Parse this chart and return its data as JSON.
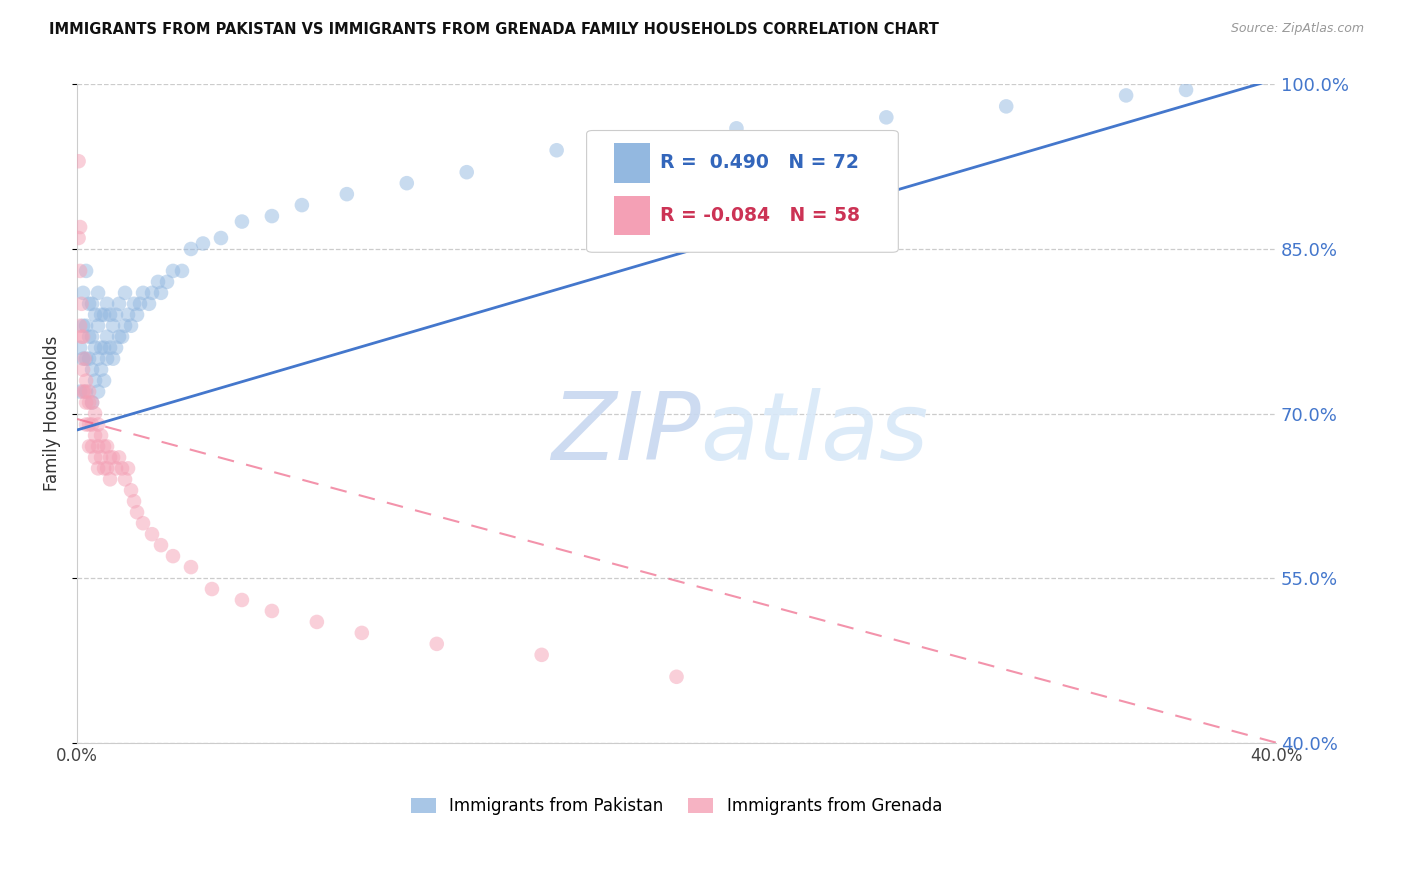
{
  "title": "IMMIGRANTS FROM PAKISTAN VS IMMIGRANTS FROM GRENADA FAMILY HOUSEHOLDS CORRELATION CHART",
  "source": "Source: ZipAtlas.com",
  "ylabel": "Family Households",
  "xlim": [
    0.0,
    0.4
  ],
  "ylim": [
    0.4,
    1.0
  ],
  "yticks": [
    0.4,
    0.55,
    0.7,
    0.85,
    1.0
  ],
  "ytick_labels": [
    "40.0%",
    "55.0%",
    "70.0%",
    "85.0%",
    "100.0%"
  ],
  "xticks": [
    0.0,
    0.05,
    0.1,
    0.15,
    0.2,
    0.25,
    0.3,
    0.35,
    0.4
  ],
  "xtick_labels": [
    "0.0%",
    "",
    "",
    "",
    "",
    "",
    "",
    "",
    "40.0%"
  ],
  "pakistan_color": "#93B8E0",
  "grenada_color": "#F4A0B5",
  "pakistan_line_color": "#4477CC",
  "grenada_line_color": "#EE6688",
  "pakistan_R": 0.49,
  "pakistan_N": 72,
  "grenada_R": -0.084,
  "grenada_N": 58,
  "watermark_zip": "ZIP",
  "watermark_atlas": "atlas",
  "legend_label_pakistan": "Immigrants from Pakistan",
  "legend_label_grenada": "Immigrants from Grenada",
  "pk_line_x0": 0.0,
  "pk_line_y0": 0.685,
  "pk_line_x1": 0.4,
  "pk_line_y1": 1.005,
  "gr_line_x0": 0.0,
  "gr_line_y0": 0.695,
  "gr_line_x1": 0.4,
  "gr_line_y1": 0.4,
  "pakistan_scatter_x": [
    0.001,
    0.001,
    0.002,
    0.002,
    0.002,
    0.003,
    0.003,
    0.003,
    0.003,
    0.004,
    0.004,
    0.004,
    0.005,
    0.005,
    0.005,
    0.005,
    0.006,
    0.006,
    0.006,
    0.007,
    0.007,
    0.007,
    0.007,
    0.008,
    0.008,
    0.008,
    0.009,
    0.009,
    0.009,
    0.01,
    0.01,
    0.01,
    0.011,
    0.011,
    0.012,
    0.012,
    0.013,
    0.013,
    0.014,
    0.014,
    0.015,
    0.016,
    0.016,
    0.017,
    0.018,
    0.019,
    0.02,
    0.021,
    0.022,
    0.024,
    0.025,
    0.027,
    0.028,
    0.03,
    0.032,
    0.035,
    0.038,
    0.042,
    0.048,
    0.055,
    0.065,
    0.075,
    0.09,
    0.11,
    0.13,
    0.16,
    0.19,
    0.22,
    0.27,
    0.31,
    0.35,
    0.37
  ],
  "pakistan_scatter_y": [
    0.76,
    0.72,
    0.75,
    0.78,
    0.81,
    0.72,
    0.75,
    0.78,
    0.83,
    0.75,
    0.77,
    0.8,
    0.71,
    0.74,
    0.77,
    0.8,
    0.73,
    0.76,
    0.79,
    0.72,
    0.75,
    0.78,
    0.81,
    0.74,
    0.76,
    0.79,
    0.73,
    0.76,
    0.79,
    0.75,
    0.77,
    0.8,
    0.76,
    0.79,
    0.75,
    0.78,
    0.76,
    0.79,
    0.77,
    0.8,
    0.77,
    0.78,
    0.81,
    0.79,
    0.78,
    0.8,
    0.79,
    0.8,
    0.81,
    0.8,
    0.81,
    0.82,
    0.81,
    0.82,
    0.83,
    0.83,
    0.85,
    0.855,
    0.86,
    0.875,
    0.88,
    0.89,
    0.9,
    0.91,
    0.92,
    0.94,
    0.95,
    0.96,
    0.97,
    0.98,
    0.99,
    0.995
  ],
  "grenada_scatter_x": [
    0.0005,
    0.0005,
    0.001,
    0.001,
    0.001,
    0.0015,
    0.0015,
    0.002,
    0.002,
    0.002,
    0.0025,
    0.0025,
    0.003,
    0.003,
    0.003,
    0.004,
    0.004,
    0.004,
    0.004,
    0.005,
    0.005,
    0.005,
    0.006,
    0.006,
    0.006,
    0.007,
    0.007,
    0.007,
    0.008,
    0.008,
    0.009,
    0.009,
    0.01,
    0.01,
    0.011,
    0.011,
    0.012,
    0.013,
    0.014,
    0.015,
    0.016,
    0.017,
    0.018,
    0.019,
    0.02,
    0.022,
    0.025,
    0.028,
    0.032,
    0.038,
    0.045,
    0.055,
    0.065,
    0.08,
    0.095,
    0.12,
    0.155,
    0.2
  ],
  "grenada_scatter_y": [
    0.93,
    0.86,
    0.87,
    0.83,
    0.78,
    0.8,
    0.77,
    0.77,
    0.74,
    0.72,
    0.75,
    0.72,
    0.73,
    0.71,
    0.69,
    0.72,
    0.71,
    0.69,
    0.67,
    0.71,
    0.69,
    0.67,
    0.7,
    0.68,
    0.66,
    0.69,
    0.67,
    0.65,
    0.68,
    0.66,
    0.67,
    0.65,
    0.67,
    0.65,
    0.66,
    0.64,
    0.66,
    0.65,
    0.66,
    0.65,
    0.64,
    0.65,
    0.63,
    0.62,
    0.61,
    0.6,
    0.59,
    0.58,
    0.57,
    0.56,
    0.54,
    0.53,
    0.52,
    0.51,
    0.5,
    0.49,
    0.48,
    0.46
  ]
}
